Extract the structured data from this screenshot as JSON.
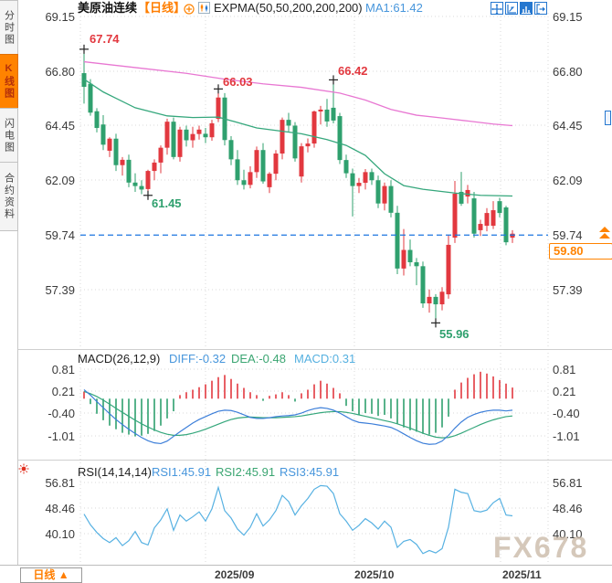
{
  "header": {
    "symbol": "美原油连续",
    "period": "【日线】",
    "indicator": "EXPMA(50,50,200,200,200)",
    "ma1": "MA1:61.42"
  },
  "sidebar": {
    "tabs": [
      {
        "label": "分时图",
        "active": false
      },
      {
        "label": "K线图",
        "active": true
      },
      {
        "label": "闪电图",
        "active": false
      },
      {
        "label": "合约资料",
        "active": false
      }
    ]
  },
  "toolbar": {
    "icons": [
      "crosshair",
      "measure",
      "kline-view-selected",
      "exit-fullscreen"
    ]
  },
  "main_axis": {
    "left": [
      "69.15",
      "66.80",
      "64.45",
      "62.09",
      "59.74",
      "57.39"
    ],
    "right": [
      "69.15",
      "66.80",
      "64.45",
      "62.09",
      "59.74",
      "57.39"
    ]
  },
  "macd": {
    "title": "MACD(26,12,9)",
    "diff_label": "DIFF:-0.32",
    "dea_label": "DEA:-0.48",
    "macd_label": "MACD:0.31",
    "axis": [
      "0.81",
      "0.21",
      "-0.40",
      "-1.01"
    ]
  },
  "rsi": {
    "title": "RSI(14,14,14)",
    "rsi1_label": "RSI1:45.91",
    "rsi2_label": "RSI2:45.91",
    "rsi3_label": "RSI3:45.91",
    "axis": [
      "56.81",
      "48.46",
      "40.10"
    ]
  },
  "xaxis": [
    "2025/09",
    "2025/10",
    "2025/11"
  ],
  "bottom": {
    "period_button": "日线 ▲"
  },
  "watermark": "FX678",
  "chart_data": {
    "type": "candlestick+macd+rsi",
    "symbol": "美原油连续",
    "timeframe": "日线",
    "current_price": "59.80",
    "dashed_price": 59.74,
    "y_range_main": [
      57.39,
      69.15
    ],
    "colors": {
      "up": "#e2383f",
      "down": "#2fa06e",
      "ma_fast": "#35a77c",
      "ma_slow": "#e877d2",
      "diff": "#3d7fd9",
      "dea": "#35a77c",
      "rsi_line": "#57b1e2",
      "dashed": "#1b76e0",
      "accent_orange": "#ff8300",
      "grid": "#dadada"
    },
    "annotations": [
      {
        "text": "67.74",
        "side": "high",
        "i": 0,
        "price": 67.74
      },
      {
        "text": "61.45",
        "side": "low",
        "i": 10,
        "price": 61.45
      },
      {
        "text": "66.03",
        "side": "high",
        "i": 21,
        "price": 66.03
      },
      {
        "text": "66.42",
        "side": "high",
        "i": 39,
        "price": 66.42
      },
      {
        "text": "55.96",
        "side": "low",
        "i": 55,
        "price": 55.96
      }
    ],
    "candles": [
      [
        66.71,
        67.74,
        65.4,
        66.12
      ],
      [
        66.25,
        66.45,
        64.88,
        65.01
      ],
      [
        65.07,
        65.2,
        64.16,
        64.35
      ],
      [
        64.5,
        64.9,
        63.4,
        63.63
      ],
      [
        63.37,
        63.95,
        63.1,
        63.89
      ],
      [
        63.89,
        64.1,
        62.5,
        62.75
      ],
      [
        62.75,
        63.1,
        62.3,
        62.98
      ],
      [
        62.98,
        63.2,
        61.8,
        62.0
      ],
      [
        62.0,
        62.4,
        61.6,
        61.85
      ],
      [
        61.85,
        62.1,
        61.5,
        61.7
      ],
      [
        61.72,
        62.55,
        61.45,
        62.5
      ],
      [
        62.5,
        63.0,
        62.1,
        62.86
      ],
      [
        62.86,
        63.6,
        62.4,
        63.5
      ],
      [
        63.5,
        64.75,
        63.2,
        64.62
      ],
      [
        64.62,
        64.8,
        63.0,
        63.1
      ],
      [
        63.1,
        64.4,
        62.9,
        64.28
      ],
      [
        64.28,
        64.45,
        63.55,
        63.82
      ],
      [
        63.82,
        64.4,
        63.5,
        64.09
      ],
      [
        64.09,
        64.45,
        63.85,
        64.28
      ],
      [
        64.1,
        64.35,
        63.7,
        63.95
      ],
      [
        63.95,
        64.7,
        63.8,
        64.55
      ],
      [
        64.74,
        66.03,
        64.6,
        65.66
      ],
      [
        65.66,
        65.85,
        63.6,
        63.83
      ],
      [
        63.83,
        64.0,
        62.75,
        63.0
      ],
      [
        63.0,
        63.4,
        61.9,
        62.1
      ],
      [
        62.1,
        62.55,
        61.7,
        61.9
      ],
      [
        61.9,
        62.7,
        61.75,
        62.45
      ],
      [
        62.45,
        63.55,
        62.2,
        63.4
      ],
      [
        63.4,
        63.7,
        61.95,
        62.05
      ],
      [
        61.8,
        62.45,
        61.55,
        62.38
      ],
      [
        62.38,
        63.4,
        62.1,
        63.25
      ],
      [
        63.25,
        64.8,
        63.0,
        64.7
      ],
      [
        64.7,
        65.0,
        64.2,
        64.45
      ],
      [
        64.45,
        64.6,
        62.9,
        63.04
      ],
      [
        62.26,
        63.7,
        62.0,
        63.56
      ],
      [
        63.56,
        63.9,
        63.3,
        63.68
      ],
      [
        63.68,
        65.1,
        63.5,
        65.06
      ],
      [
        65.06,
        65.3,
        64.5,
        65.14
      ],
      [
        65.14,
        65.6,
        64.4,
        64.63
      ],
      [
        65.22,
        66.42,
        64.55,
        64.67
      ],
      [
        64.86,
        65.0,
        62.8,
        62.97
      ],
      [
        62.97,
        63.2,
        62.2,
        62.4
      ],
      [
        62.4,
        62.6,
        60.54,
        61.85
      ],
      [
        61.85,
        62.2,
        61.55,
        61.99
      ],
      [
        61.99,
        62.58,
        61.7,
        62.45
      ],
      [
        62.45,
        62.6,
        61.9,
        62.1
      ],
      [
        62.1,
        62.3,
        60.9,
        61.1
      ],
      [
        61.1,
        62.0,
        60.8,
        61.85
      ],
      [
        61.85,
        62.1,
        60.5,
        60.7
      ],
      [
        60.7,
        61.0,
        58.06,
        58.3
      ],
      [
        58.3,
        60.0,
        58.0,
        59.1
      ],
      [
        59.1,
        59.55,
        58.4,
        58.57
      ],
      [
        58.57,
        58.75,
        57.58,
        58.4
      ],
      [
        58.4,
        58.6,
        56.61,
        56.8
      ],
      [
        56.8,
        57.4,
        56.4,
        57.08
      ],
      [
        57.08,
        57.2,
        55.96,
        56.76
      ],
      [
        56.76,
        57.5,
        56.5,
        57.3
      ],
      [
        57.19,
        59.75,
        57.0,
        59.32
      ],
      [
        59.63,
        62.07,
        59.4,
        61.52
      ],
      [
        61.6,
        62.46,
        61.0,
        61.09
      ],
      [
        61.4,
        61.9,
        61.1,
        61.68
      ],
      [
        61.32,
        61.6,
        59.63,
        59.8
      ],
      [
        59.95,
        60.4,
        59.7,
        60.22
      ],
      [
        60.14,
        60.9,
        59.9,
        60.69
      ],
      [
        60.14,
        61.2,
        60.0,
        60.81
      ],
      [
        61.2,
        61.35,
        60.5,
        60.69
      ],
      [
        60.93,
        61.0,
        59.3,
        59.43
      ],
      [
        59.63,
        59.95,
        59.4,
        59.8
      ]
    ],
    "ma_fast_anchors": [
      [
        0,
        66.45
      ],
      [
        3,
        65.9
      ],
      [
        8,
        65.22
      ],
      [
        13,
        64.87
      ],
      [
        17,
        64.8
      ],
      [
        21,
        64.82
      ],
      [
        27,
        64.35
      ],
      [
        34,
        64.1
      ],
      [
        38,
        63.85
      ],
      [
        41,
        63.6
      ],
      [
        44,
        63.17
      ],
      [
        47,
        62.38
      ],
      [
        50,
        61.87
      ],
      [
        53,
        61.71
      ],
      [
        58,
        61.55
      ],
      [
        62,
        61.45
      ],
      [
        67,
        61.42
      ]
    ],
    "ma_slow_anchors": [
      [
        0,
        67.2
      ],
      [
        8,
        66.95
      ],
      [
        16,
        66.7
      ],
      [
        22,
        66.45
      ],
      [
        28,
        66.25
      ],
      [
        34,
        66.1
      ],
      [
        40,
        65.85
      ],
      [
        44,
        65.55
      ],
      [
        48,
        65.15
      ],
      [
        52,
        64.9
      ],
      [
        56,
        64.78
      ],
      [
        60,
        64.65
      ],
      [
        64,
        64.52
      ],
      [
        67,
        64.45
      ]
    ],
    "macd_hist": [
      0.2,
      -0.15,
      -0.42,
      -0.6,
      -0.75,
      -0.85,
      -0.95,
      -1.0,
      -1.05,
      -1.03,
      -0.98,
      -0.9,
      -0.75,
      -0.55,
      -0.35,
      0.1,
      0.18,
      0.25,
      0.32,
      0.4,
      0.5,
      0.6,
      0.66,
      0.55,
      0.42,
      0.3,
      0.18,
      0.1,
      -0.06,
      0.08,
      0.12,
      0.18,
      0.1,
      -0.08,
      0.15,
      0.25,
      0.4,
      0.5,
      0.42,
      0.3,
      0.15,
      -0.2,
      -0.35,
      -0.45,
      -0.4,
      -0.42,
      -0.48,
      -0.45,
      -0.55,
      -0.7,
      -0.8,
      -0.88,
      -0.92,
      -0.98,
      -1.0,
      -0.95,
      -0.8,
      -0.5,
      0.25,
      0.45,
      0.58,
      0.68,
      0.75,
      0.7,
      0.62,
      0.52,
      0.42,
      0.31
    ],
    "macd_diff": [
      0.25,
      0.1,
      -0.08,
      -0.25,
      -0.42,
      -0.58,
      -0.72,
      -0.85,
      -0.97,
      -1.08,
      -1.17,
      -1.23,
      -1.25,
      -1.18,
      -1.05,
      -0.92,
      -0.8,
      -0.68,
      -0.58,
      -0.5,
      -0.42,
      -0.35,
      -0.32,
      -0.33,
      -0.38,
      -0.45,
      -0.52,
      -0.55,
      -0.55,
      -0.53,
      -0.5,
      -0.48,
      -0.47,
      -0.45,
      -0.4,
      -0.33,
      -0.28,
      -0.25,
      -0.27,
      -0.32,
      -0.4,
      -0.5,
      -0.6,
      -0.66,
      -0.68,
      -0.7,
      -0.73,
      -0.76,
      -0.8,
      -0.88,
      -0.98,
      -1.08,
      -1.17,
      -1.24,
      -1.27,
      -1.26,
      -1.18,
      -1.02,
      -0.82,
      -0.65,
      -0.52,
      -0.44,
      -0.38,
      -0.34,
      -0.32,
      -0.32,
      -0.34,
      -0.32
    ],
    "macd_dea": [
      0.2,
      0.14,
      0.06,
      -0.04,
      -0.15,
      -0.27,
      -0.38,
      -0.49,
      -0.6,
      -0.7,
      -0.79,
      -0.87,
      -0.94,
      -0.99,
      -1.02,
      -1.02,
      -1.0,
      -0.96,
      -0.91,
      -0.85,
      -0.78,
      -0.71,
      -0.64,
      -0.58,
      -0.54,
      -0.52,
      -0.51,
      -0.52,
      -0.53,
      -0.53,
      -0.53,
      -0.52,
      -0.51,
      -0.5,
      -0.48,
      -0.45,
      -0.42,
      -0.39,
      -0.37,
      -0.36,
      -0.36,
      -0.38,
      -0.41,
      -0.45,
      -0.49,
      -0.53,
      -0.57,
      -0.61,
      -0.65,
      -0.7,
      -0.76,
      -0.82,
      -0.89,
      -0.96,
      -1.02,
      -1.07,
      -1.09,
      -1.08,
      -1.03,
      -0.96,
      -0.88,
      -0.8,
      -0.72,
      -0.65,
      -0.59,
      -0.54,
      -0.5,
      -0.48
    ],
    "rsi_values": [
      46.5,
      43.0,
      40.5,
      38.5,
      37.2,
      38.8,
      36.2,
      37.8,
      40.8,
      37.2,
      36.4,
      42.0,
      44.6,
      48.2,
      41.2,
      46.2,
      44.2,
      45.6,
      47.2,
      44.2,
      48.2,
      55.2,
      47.6,
      45.2,
      41.6,
      39.6,
      42.2,
      46.6,
      42.6,
      44.6,
      47.6,
      52.6,
      50.6,
      46.2,
      49.2,
      51.6,
      54.6,
      55.8,
      55.6,
      53.2,
      46.6,
      44.2,
      41.2,
      42.8,
      45.0,
      43.6,
      41.6,
      44.2,
      42.2,
      35.6,
      37.6,
      38.2,
      36.6,
      33.6,
      34.6,
      33.8,
      35.2,
      42.2,
      54.6,
      53.6,
      53.2,
      47.6,
      47.2,
      47.8,
      50.2,
      51.6,
      46.2,
      45.91
    ],
    "macd_axis_values": [
      0.81,
      0.21,
      -0.4,
      -1.01
    ],
    "rsi_axis_values": [
      56.81,
      48.46,
      40.1
    ],
    "x_gridlines_labels": [
      "2025/09",
      "2025/10",
      "2025/11"
    ]
  }
}
